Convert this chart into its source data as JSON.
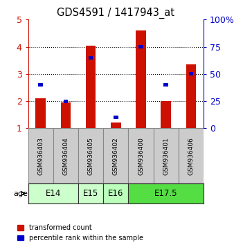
{
  "title": "GDS4591 / 1417943_at",
  "samples": [
    "GSM936403",
    "GSM936404",
    "GSM936405",
    "GSM936402",
    "GSM936400",
    "GSM936401",
    "GSM936406"
  ],
  "transformed_count": [
    2.1,
    1.95,
    4.05,
    1.2,
    4.6,
    2.0,
    3.35
  ],
  "percentile_rank": [
    40,
    25,
    65,
    10,
    75,
    40,
    50
  ],
  "ages": [
    {
      "label": "E14",
      "start": 0,
      "end": 1,
      "color": "#ccffcc"
    },
    {
      "label": "E15",
      "start": 2,
      "end": 2,
      "color": "#ccffcc"
    },
    {
      "label": "E16",
      "start": 3,
      "end": 3,
      "color": "#ccffcc"
    },
    {
      "label": "E17.5",
      "start": 4,
      "end": 6,
      "color": "#66ee55"
    }
  ],
  "age_spans": [
    {
      "label": "E14",
      "indices": [
        0,
        1
      ],
      "color": "#ccffcc"
    },
    {
      "label": "E15",
      "indices": [
        2
      ],
      "color": "#ccffcc"
    },
    {
      "label": "E16",
      "indices": [
        3
      ],
      "color": "#bbffbb"
    },
    {
      "label": "E17.5",
      "indices": [
        4,
        5,
        6
      ],
      "color": "#55dd44"
    }
  ],
  "bar_color": "#cc1100",
  "marker_color": "#0000cc",
  "left_ylim": [
    1,
    5
  ],
  "left_yticks": [
    1,
    2,
    3,
    4,
    5
  ],
  "right_ylim": [
    0,
    100
  ],
  "right_yticks": [
    0,
    25,
    50,
    75,
    100
  ],
  "right_yticklabels": [
    "0",
    "25",
    "50",
    "75",
    "100%"
  ],
  "left_tick_color": "#cc1100",
  "right_tick_color": "#0000cc",
  "sample_box_color": "#cccccc",
  "background_color": "#ffffff"
}
